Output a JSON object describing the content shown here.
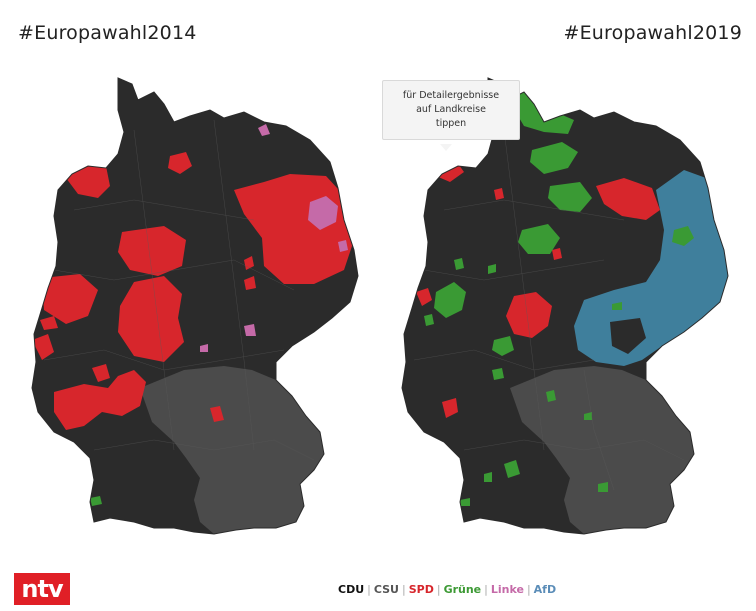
{
  "titles": {
    "left": "#Europawahl2014",
    "right": "#Europawahl2019"
  },
  "tooltip": {
    "line1": "für Detailergebnisse",
    "line2": "auf Landkreise",
    "line3": "tippen"
  },
  "logo": {
    "text": "ntv",
    "color": "#e01f26"
  },
  "legend": {
    "items": [
      {
        "label": "CDU",
        "color": "#111111"
      },
      {
        "label": "CSU",
        "color": "#555555"
      },
      {
        "label": "SPD",
        "color": "#d7262c"
      },
      {
        "label": "Grüne",
        "color": "#3d9a35"
      },
      {
        "label": "Linke",
        "color": "#c56aa8"
      },
      {
        "label": "AfD",
        "color": "#5b8db8"
      }
    ]
  },
  "party_colors": {
    "CDU": "#2b2b2b",
    "CSU": "#4b4b4b",
    "SPD": "#d7262c",
    "Gruene": "#3a9a34",
    "Linke": "#c56aa8",
    "AfD": "#3f7f9c"
  }
}
